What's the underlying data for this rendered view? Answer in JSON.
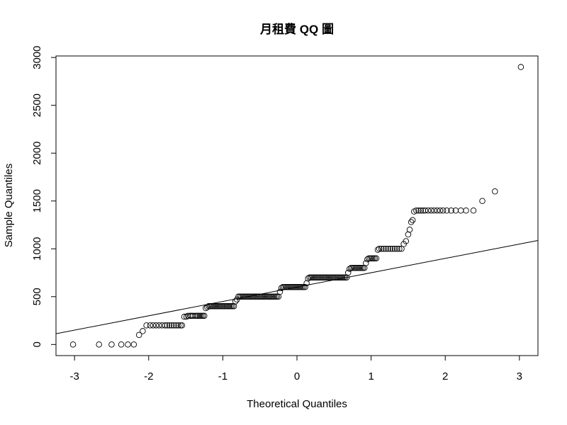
{
  "chart_data": {
    "type": "scatter",
    "title": "月租費 QQ 圖",
    "xlabel": "Theoretical Quantiles",
    "ylabel": "Sample Quantiles",
    "xlim": [
      -3.25,
      3.25
    ],
    "ylim": [
      -116,
      3016
    ],
    "x_ticks": [
      -3,
      -2,
      -1,
      0,
      1,
      2,
      3
    ],
    "y_ticks": [
      0,
      500,
      1000,
      1500,
      2000,
      2500,
      3000
    ],
    "x_tick_labels": [
      "-3",
      "-2",
      "-1",
      "0",
      "1",
      "2",
      "3"
    ],
    "y_tick_labels": [
      "0",
      "500",
      "1000",
      "1500",
      "2000",
      "2500",
      "3000"
    ],
    "grid": false,
    "reference_line": {
      "slope": 150,
      "intercept": 600
    },
    "points": [
      [
        -3.02,
        0
      ],
      [
        -2.67,
        0
      ],
      [
        -2.5,
        0
      ],
      [
        -2.37,
        0
      ],
      [
        -2.28,
        0
      ],
      [
        -2.2,
        0
      ],
      [
        -2.13,
        100
      ],
      [
        -2.08,
        140
      ],
      [
        -2.03,
        200
      ],
      [
        -1.98,
        200
      ],
      [
        -1.94,
        200
      ],
      [
        -1.9,
        200
      ],
      [
        -1.86,
        200
      ],
      [
        -1.82,
        200
      ],
      [
        -1.78,
        200
      ],
      [
        -1.75,
        200
      ],
      [
        -1.72,
        200
      ],
      [
        -1.69,
        200
      ],
      [
        -1.66,
        200
      ],
      [
        -1.63,
        200
      ],
      [
        -1.6,
        200
      ],
      [
        -1.57,
        200
      ],
      [
        -1.55,
        200
      ],
      [
        -1.52,
        290
      ],
      [
        -1.49,
        290
      ],
      [
        -1.47,
        300
      ],
      [
        -1.44,
        300
      ],
      [
        -1.42,
        300
      ],
      [
        -1.4,
        300
      ],
      [
        -1.37,
        300
      ],
      [
        -1.35,
        300
      ],
      [
        -1.33,
        300
      ],
      [
        -1.31,
        300
      ],
      [
        -1.29,
        300
      ],
      [
        -1.27,
        300
      ],
      [
        -1.25,
        300
      ],
      [
        -1.23,
        380
      ],
      [
        -1.21,
        390
      ],
      [
        -1.19,
        400
      ],
      [
        -1.17,
        400
      ],
      [
        -1.15,
        400
      ],
      [
        -1.13,
        400
      ],
      [
        -1.11,
        400
      ],
      [
        -1.09,
        400
      ],
      [
        -1.07,
        400
      ],
      [
        -1.05,
        400
      ],
      [
        -1.03,
        400
      ],
      [
        -1.01,
        400
      ],
      [
        -0.99,
        400
      ],
      [
        -0.97,
        400
      ],
      [
        -0.95,
        400
      ],
      [
        -0.93,
        400
      ],
      [
        -0.91,
        400
      ],
      [
        -0.89,
        400
      ],
      [
        -0.87,
        400
      ],
      [
        -0.85,
        400
      ],
      [
        -0.83,
        450
      ],
      [
        -0.81,
        470
      ],
      [
        -0.79,
        500
      ],
      [
        -0.77,
        500
      ],
      [
        -0.75,
        500
      ],
      [
        -0.73,
        500
      ],
      [
        -0.71,
        500
      ],
      [
        -0.69,
        500
      ],
      [
        -0.67,
        500
      ],
      [
        -0.65,
        500
      ],
      [
        -0.63,
        500
      ],
      [
        -0.61,
        500
      ],
      [
        -0.59,
        500
      ],
      [
        -0.57,
        500
      ],
      [
        -0.55,
        500
      ],
      [
        -0.53,
        500
      ],
      [
        -0.51,
        500
      ],
      [
        -0.49,
        500
      ],
      [
        -0.47,
        500
      ],
      [
        -0.45,
        500
      ],
      [
        -0.43,
        500
      ],
      [
        -0.41,
        500
      ],
      [
        -0.39,
        500
      ],
      [
        -0.37,
        500
      ],
      [
        -0.35,
        500
      ],
      [
        -0.33,
        500
      ],
      [
        -0.31,
        500
      ],
      [
        -0.29,
        500
      ],
      [
        -0.27,
        500
      ],
      [
        -0.25,
        500
      ],
      [
        -0.23,
        550
      ],
      [
        -0.21,
        590
      ],
      [
        -0.19,
        600
      ],
      [
        -0.17,
        600
      ],
      [
        -0.15,
        600
      ],
      [
        -0.13,
        600
      ],
      [
        -0.11,
        600
      ],
      [
        -0.09,
        600
      ],
      [
        -0.07,
        600
      ],
      [
        -0.05,
        600
      ],
      [
        -0.03,
        600
      ],
      [
        -0.01,
        600
      ],
      [
        0.01,
        600
      ],
      [
        0.03,
        600
      ],
      [
        0.05,
        600
      ],
      [
        0.07,
        600
      ],
      [
        0.09,
        600
      ],
      [
        0.11,
        600
      ],
      [
        0.13,
        640
      ],
      [
        0.15,
        690
      ],
      [
        0.17,
        700
      ],
      [
        0.19,
        700
      ],
      [
        0.21,
        700
      ],
      [
        0.23,
        700
      ],
      [
        0.25,
        700
      ],
      [
        0.27,
        700
      ],
      [
        0.29,
        700
      ],
      [
        0.31,
        700
      ],
      [
        0.33,
        700
      ],
      [
        0.35,
        700
      ],
      [
        0.37,
        700
      ],
      [
        0.39,
        700
      ],
      [
        0.41,
        700
      ],
      [
        0.43,
        700
      ],
      [
        0.45,
        700
      ],
      [
        0.47,
        700
      ],
      [
        0.49,
        700
      ],
      [
        0.51,
        700
      ],
      [
        0.53,
        700
      ],
      [
        0.55,
        700
      ],
      [
        0.57,
        700
      ],
      [
        0.59,
        700
      ],
      [
        0.61,
        700
      ],
      [
        0.63,
        700
      ],
      [
        0.65,
        700
      ],
      [
        0.67,
        700
      ],
      [
        0.69,
        750
      ],
      [
        0.71,
        790
      ],
      [
        0.73,
        800
      ],
      [
        0.75,
        800
      ],
      [
        0.77,
        800
      ],
      [
        0.79,
        800
      ],
      [
        0.81,
        800
      ],
      [
        0.83,
        800
      ],
      [
        0.85,
        800
      ],
      [
        0.87,
        800
      ],
      [
        0.89,
        800
      ],
      [
        0.91,
        800
      ],
      [
        0.93,
        850
      ],
      [
        0.95,
        890
      ],
      [
        0.97,
        900
      ],
      [
        0.99,
        900
      ],
      [
        1.01,
        900
      ],
      [
        1.03,
        900
      ],
      [
        1.05,
        900
      ],
      [
        1.07,
        900
      ],
      [
        1.09,
        990
      ],
      [
        1.11,
        1000
      ],
      [
        1.14,
        1000
      ],
      [
        1.17,
        1000
      ],
      [
        1.2,
        1000
      ],
      [
        1.23,
        1000
      ],
      [
        1.26,
        1000
      ],
      [
        1.29,
        1000
      ],
      [
        1.32,
        1000
      ],
      [
        1.35,
        1000
      ],
      [
        1.38,
        1000
      ],
      [
        1.41,
        1000
      ],
      [
        1.44,
        1050
      ],
      [
        1.47,
        1080
      ],
      [
        1.5,
        1150
      ],
      [
        1.52,
        1200
      ],
      [
        1.54,
        1280
      ],
      [
        1.56,
        1300
      ],
      [
        1.58,
        1390
      ],
      [
        1.61,
        1400
      ],
      [
        1.64,
        1400
      ],
      [
        1.67,
        1400
      ],
      [
        1.7,
        1400
      ],
      [
        1.73,
        1400
      ],
      [
        1.77,
        1400
      ],
      [
        1.81,
        1400
      ],
      [
        1.85,
        1400
      ],
      [
        1.89,
        1400
      ],
      [
        1.93,
        1400
      ],
      [
        1.97,
        1400
      ],
      [
        2.02,
        1400
      ],
      [
        2.08,
        1400
      ],
      [
        2.14,
        1400
      ],
      [
        2.21,
        1400
      ],
      [
        2.28,
        1400
      ],
      [
        2.38,
        1400
      ],
      [
        2.5,
        1500
      ],
      [
        2.67,
        1600
      ],
      [
        3.02,
        2900
      ]
    ]
  }
}
